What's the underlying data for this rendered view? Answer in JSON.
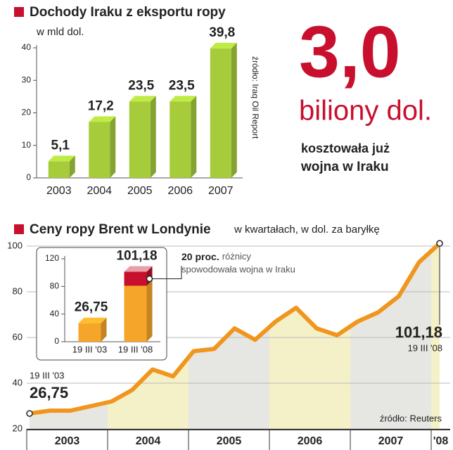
{
  "chart_data": [
    {
      "type": "bar",
      "title": "Dochody Iraku z eksportu ropy",
      "subtitle": "w mld dol.",
      "source": "źródło: Iraq Oil Report",
      "categories": [
        "2003",
        "2004",
        "2005",
        "2006",
        "2007"
      ],
      "values": [
        5.1,
        17.2,
        23.5,
        23.5,
        39.8
      ],
      "value_labels": [
        "5,1",
        "17,2",
        "23,5",
        "23,5",
        "39,8"
      ],
      "color": "#a6cc3c",
      "ylim": [
        0,
        40
      ],
      "yticks": [
        0,
        10,
        20,
        30,
        40
      ]
    },
    {
      "type": "line",
      "title": "Ceny ropy Brent w Londynie",
      "subtitle": "w kwartałach, w dol. za baryłkę",
      "source": "źródło: Reuters",
      "categories": [
        "19 III '03",
        null,
        null,
        null,
        null,
        null,
        null,
        null,
        null,
        null,
        null,
        null,
        null,
        null,
        null,
        null,
        null,
        null,
        null,
        null,
        "19 III '08"
      ],
      "values": [
        26.75,
        28,
        28,
        30,
        32,
        37,
        46,
        43,
        54,
        55,
        64,
        59,
        67,
        73,
        64,
        61,
        67,
        71,
        78,
        93,
        101.18
      ],
      "value_labels": [
        "26,75",
        null,
        null,
        null,
        null,
        null,
        null,
        null,
        null,
        null,
        null,
        null,
        null,
        null,
        null,
        null,
        null,
        null,
        null,
        null,
        "101,18"
      ],
      "year_labels": [
        "2003",
        "2004",
        "2005",
        "2006",
        "2007",
        "'08"
      ],
      "color": "#f0961e",
      "ylim": [
        20,
        100
      ],
      "yticks": [
        20,
        40,
        60,
        80,
        100
      ],
      "grid": true
    },
    {
      "type": "bar",
      "categories": [
        "19 III '03",
        "19 III '08"
      ],
      "values": [
        26.75,
        101.18
      ],
      "value_labels": [
        "26,75",
        "101,18"
      ],
      "color": "#f5a52a",
      "ylim": [
        0,
        120
      ],
      "yticks": [
        0,
        40,
        80,
        120
      ],
      "war_share": {
        "value": 20,
        "label": "20 proc."
      },
      "war_share_color": "#c8102e",
      "annotation": [
        "różnicy",
        "spowodowała wojna w Iraku"
      ]
    }
  ],
  "callout": {
    "amount": "3,0",
    "unit": "biliony dol.",
    "line1": "kosztowała już",
    "line2": "wojna w Iraku"
  }
}
